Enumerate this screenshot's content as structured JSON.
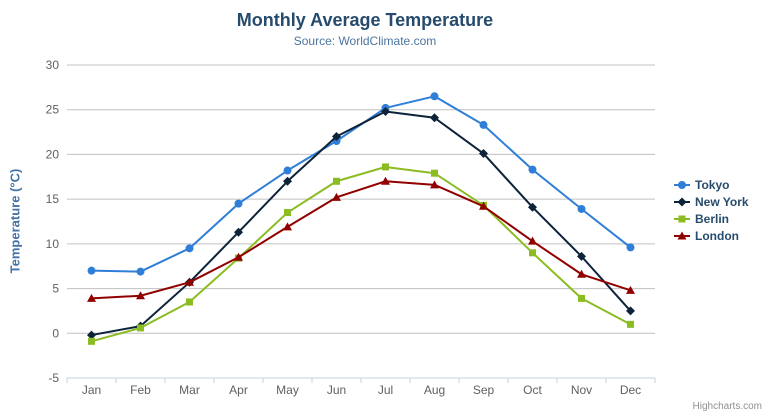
{
  "chart_data": {
    "type": "line",
    "title": "Monthly Average Temperature",
    "subtitle": "Source: WorldClimate.com",
    "categories": [
      "Jan",
      "Feb",
      "Mar",
      "Apr",
      "May",
      "Jun",
      "Jul",
      "Aug",
      "Sep",
      "Oct",
      "Nov",
      "Dec"
    ],
    "xlabel": "",
    "ylabel": "Temperature (°C)",
    "ylim": [
      -5,
      30
    ],
    "yticks": [
      -5,
      0,
      5,
      10,
      15,
      20,
      25,
      30
    ],
    "grid": true,
    "legend_position": "right",
    "series": [
      {
        "name": "Tokyo",
        "color": "#2f7ed8",
        "marker": "circle",
        "values": [
          7.0,
          6.9,
          9.5,
          14.5,
          18.2,
          21.5,
          25.2,
          26.5,
          23.3,
          18.3,
          13.9,
          9.6
        ]
      },
      {
        "name": "New York",
        "color": "#0d233a",
        "marker": "diamond",
        "values": [
          -0.2,
          0.8,
          5.7,
          11.3,
          17.0,
          22.0,
          24.8,
          24.1,
          20.1,
          14.1,
          8.6,
          2.5
        ]
      },
      {
        "name": "Berlin",
        "color": "#8bbc21",
        "marker": "square",
        "values": [
          -0.9,
          0.6,
          3.5,
          8.4,
          13.5,
          17.0,
          18.6,
          17.9,
          14.3,
          9.0,
          3.9,
          1.0
        ]
      },
      {
        "name": "London",
        "color": "#910000",
        "marker": "triangle",
        "values": [
          3.9,
          4.2,
          5.7,
          8.5,
          11.9,
          15.2,
          17.0,
          16.6,
          14.2,
          10.3,
          6.6,
          4.8
        ]
      }
    ]
  },
  "credits": {
    "label": "Highcharts.com"
  },
  "colors": {
    "title": "#274b6d",
    "subtitle": "#4d759e",
    "axis_title": "#4572a7",
    "axis_label": "#606060",
    "grid_line": "#c0c0c0",
    "axis_line": "#c0d0e0",
    "credits": "#909090",
    "menu_icon": "#666666",
    "background": "#ffffff"
  }
}
